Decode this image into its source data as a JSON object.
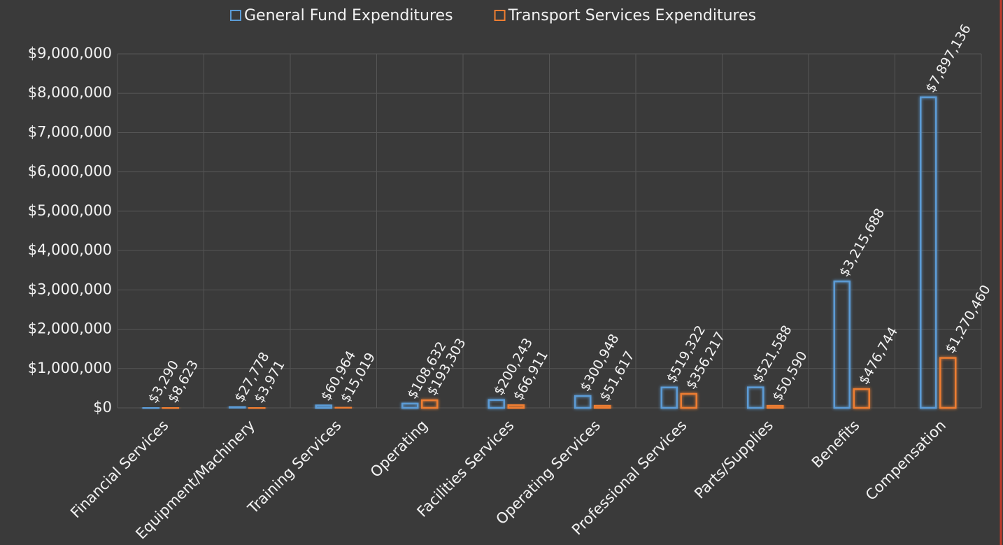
{
  "chart_data": {
    "type": "bar",
    "categories": [
      "Financial Services",
      "Equipment/Machinery",
      "Training Services",
      "Operating",
      "Facilities Services",
      "Operating Services",
      "Professional Services",
      "Parts/Supplies",
      "Benefits",
      "Compensation"
    ],
    "series": [
      {
        "name": "General Fund Expenditures",
        "color": "#5b9bd5",
        "values": [
          3290,
          27778,
          60964,
          108632,
          200243,
          300948,
          519322,
          521588,
          3215688,
          7897136
        ],
        "value_labels": [
          "$3,290",
          "$27,778",
          "$60,964",
          "$108,632",
          "$200,243",
          "$300,948",
          "$519,322",
          "$521,588",
          "$3,215,688",
          "$7,897,136"
        ]
      },
      {
        "name": "Transport Services Expenditures",
        "color": "#ed7d31",
        "values": [
          8623,
          3971,
          15019,
          193303,
          66911,
          51617,
          356217,
          50590,
          476744,
          1270460
        ],
        "value_labels": [
          "$8,623",
          "$3,971",
          "$15,019",
          "$193,303",
          "$66,911",
          "$51,617",
          "$356,217",
          "$50,590",
          "$476,744",
          "$1,270,460"
        ]
      }
    ],
    "ylim": [
      0,
      9000000
    ],
    "yticks": [
      {
        "value": 0,
        "label": "$0"
      },
      {
        "value": 1000000,
        "label": "$1,000,000"
      },
      {
        "value": 2000000,
        "label": "$2,000,000"
      },
      {
        "value": 3000000,
        "label": "$3,000,000"
      },
      {
        "value": 4000000,
        "label": "$4,000,000"
      },
      {
        "value": 5000000,
        "label": "$5,000,000"
      },
      {
        "value": 6000000,
        "label": "$6,000,000"
      },
      {
        "value": 7000000,
        "label": "$7,000,000"
      },
      {
        "value": 8000000,
        "label": "$8,000,000"
      },
      {
        "value": 9000000,
        "label": "$9,000,000"
      }
    ],
    "grid": true,
    "legend": "top"
  }
}
